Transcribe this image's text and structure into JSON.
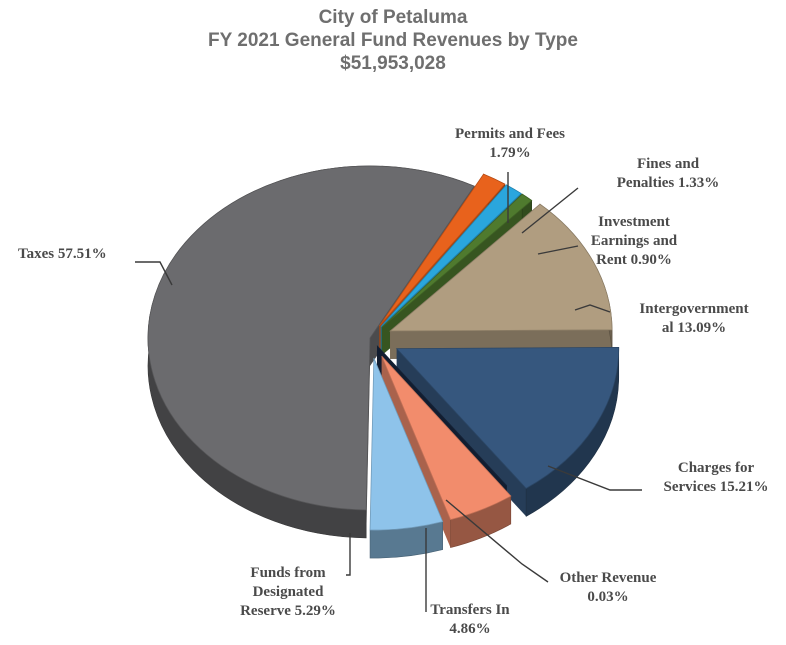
{
  "chart_data": {
    "type": "pie",
    "title": "City of Petaluma",
    "subtitle": "FY 2021 General Fund Revenues by Type",
    "total_label": "$51,953,028",
    "slices": [
      {
        "name": "Taxes",
        "value": 57.51,
        "label_lines": [
          "Taxes 57.51%"
        ],
        "color": "#6b6b6e"
      },
      {
        "name": "Permits and Fees",
        "value": 1.79,
        "label_lines": [
          "Permits and Fees",
          "1.79%"
        ],
        "color": "#e8621c"
      },
      {
        "name": "Fines and Penalties",
        "value": 1.33,
        "label_lines": [
          "Fines and",
          "Penalties 1.33%"
        ],
        "color": "#2aa6dd"
      },
      {
        "name": "Investment Earnings and Rent",
        "value": 0.9,
        "label_lines": [
          "Investment",
          "Earnings and",
          "Rent 0.90%"
        ],
        "color": "#4f7a2e"
      },
      {
        "name": "Intergovernmental",
        "value": 13.09,
        "label_lines": [
          "Intergovernment",
          "al 13.09%"
        ],
        "color": "#b09d80"
      },
      {
        "name": "Charges for Services",
        "value": 15.21,
        "label_lines": [
          "Charges for",
          "Services 15.21%"
        ],
        "color": "#36577e"
      },
      {
        "name": "Other Revenue",
        "value": 0.03,
        "label_lines": [
          "Other Revenue",
          "0.03%"
        ],
        "color": "#1a2a44"
      },
      {
        "name": "Transfers In",
        "value": 4.86,
        "label_lines": [
          "Transfers In",
          "4.86%"
        ],
        "color": "#f28c6c"
      },
      {
        "name": "Funds from Designated Reserve",
        "value": 5.29,
        "label_lines": [
          "Funds from",
          "Designated",
          "Reserve 5.29%"
        ],
        "color": "#8ec3ea"
      }
    ],
    "legend": "none",
    "label_style": "callouts"
  }
}
